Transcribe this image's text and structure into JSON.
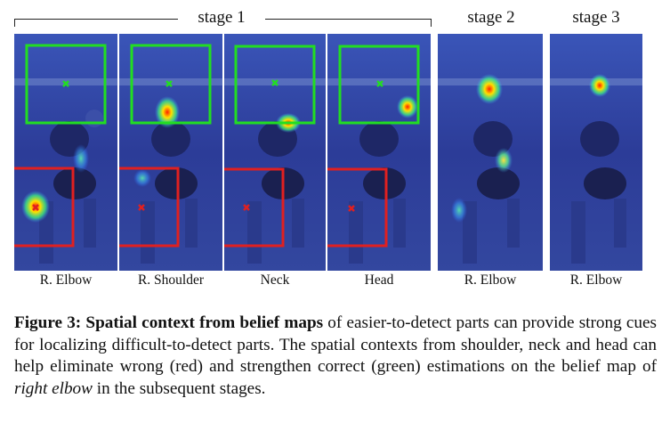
{
  "figure": {
    "stage_labels": [
      "stage 1",
      "stage 2",
      "stage 3"
    ],
    "panels": [
      {
        "label": "R. Elbow",
        "stage": 1
      },
      {
        "label": "R. Shoulder",
        "stage": 1
      },
      {
        "label": "Neck",
        "stage": 1
      },
      {
        "label": "Head",
        "stage": 1
      },
      {
        "label": "R. Elbow",
        "stage": 2
      },
      {
        "label": "R. Elbow",
        "stage": 3
      }
    ]
  },
  "caption": {
    "heading": "Figure 3: Spatial context from belief maps",
    "body_1": " of easier-to-detect parts can provide strong cues for localizing difficult-to-detect parts. The spatial contexts from shoulder, neck and head can help eliminate wrong (red) and strengthen correct (green) estimations on the belief map of ",
    "emphasis": "right elbow",
    "body_2": " in the subsequent stages."
  },
  "colors": {
    "correct_box": "#22dd22",
    "wrong_box": "#e02020",
    "map_background": "#2e3f9a"
  }
}
